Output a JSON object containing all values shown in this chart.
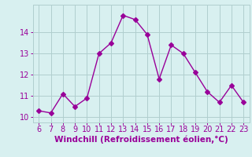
{
  "x": [
    6,
    7,
    8,
    9,
    10,
    11,
    12,
    13,
    14,
    15,
    16,
    17,
    18,
    19,
    20,
    21,
    22,
    23
  ],
  "y": [
    10.3,
    10.2,
    11.1,
    10.5,
    10.9,
    13.0,
    13.5,
    14.8,
    14.6,
    13.9,
    11.8,
    13.4,
    13.0,
    12.1,
    11.2,
    10.7,
    11.5,
    10.7
  ],
  "line_color": "#990099",
  "marker": "D",
  "marker_size": 3,
  "bg_color": "#d8f0f0",
  "grid_color": "#b0cece",
  "xlabel": "Windchill (Refroidissement éolien,°C)",
  "xlabel_color": "#990099",
  "xlabel_fontsize": 7.5,
  "tick_color": "#990099",
  "tick_fontsize": 7,
  "xlim": [
    5.5,
    23.5
  ],
  "ylim": [
    9.75,
    15.3
  ],
  "yticks": [
    10,
    11,
    12,
    13,
    14
  ],
  "xticks": [
    6,
    7,
    8,
    9,
    10,
    11,
    12,
    13,
    14,
    15,
    16,
    17,
    18,
    19,
    20,
    21,
    22,
    23
  ]
}
